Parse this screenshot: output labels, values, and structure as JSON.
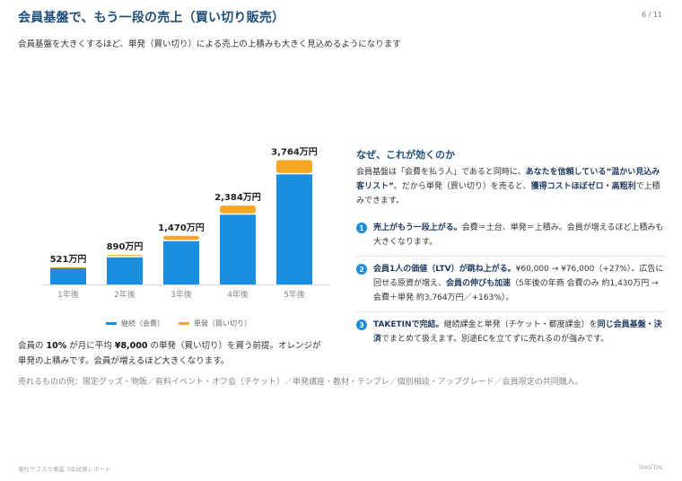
{
  "header": {
    "title": "会員基盤で、もう一段の売上（買い切り販売）",
    "page": "6 / 11",
    "subtitle": "会員基盤を大きくするほど、単発（買い切り）による売上の上積みも大きく見込めるようになります"
  },
  "colors": {
    "subscription": "#1a8fe0",
    "oneoff": "#f5a623",
    "title": "#1f4e79"
  },
  "chart_data": {
    "type": "bar",
    "stacked": true,
    "categories": [
      "1年後",
      "2年後",
      "3年後",
      "4年後",
      "5年後"
    ],
    "series": [
      {
        "name": "継続（会費）",
        "values": [
          500,
          820,
          1310,
          2110,
          3330
        ]
      },
      {
        "name": "単発（買い切り）",
        "values": [
          21,
          70,
          160,
          274,
          434
        ]
      }
    ],
    "total_labels": [
      "521万円",
      "890万円",
      "1,470万円",
      "2,384万円",
      "3,764万円"
    ],
    "ylim": [
      0,
      3800
    ],
    "legend_position": "bottom"
  },
  "legend": {
    "subscription": "継続（会費）",
    "oneoff": "単発（買い切り）"
  },
  "note": {
    "p1": "会員の ",
    "b1": "10%",
    "p2": " が月に平均 ",
    "b2": "¥8,000",
    "p3": " の単発（買い切り）を買う前提。オレンジが単発の上積みです。会員が増えるほど大きくなります。"
  },
  "why": {
    "title": "なぜ、これが効くのか",
    "p1": "会員基盤は「会費を払う人」であると同時に、",
    "b1": "あなたを信頼している“温かい見込み客リスト”",
    "p2": "。だから単発（買い切り）を売ると、",
    "b2": "獲得コストほぼゼロ・高粗利",
    "p3": "で上積みできます。"
  },
  "points": [
    {
      "num": "1",
      "bold": "売上がもう一段上がる。",
      "text": "会費＝土台、単発＝上積み。会員が増えるほど上積みも大きくなります。"
    },
    {
      "num": "2",
      "bold": "会員1人の価値（LTV）が跳ね上がる。",
      "text": "¥60,000 → ¥76,000（+27%）。広告に回せる原資が増え、",
      "bold2": "会員の伸びも加速",
      "text2": "（5年後の年商 会費のみ 約1,430万円 → 会費＋単発 約3,764万円／+163%）。"
    },
    {
      "num": "3",
      "bold": "TAKETINで完結。",
      "text": "継続課金と単発（チケット・都度課金）を",
      "bold2": "同じ会員基盤・決済",
      "text2": "でまとめて扱えます。別途ECを立てずに売れるのが強みです。"
    }
  ],
  "examples": "売れるものの例：限定グッズ・物販／有料イベント・オフ会（チケット）／単発講座・教材・テンプレ／個別相談・アップグレード／会員限定の共同購入。",
  "footer": {
    "left": "御社サブスク事業 3年試算レポート",
    "right": "TAKETIN"
  }
}
